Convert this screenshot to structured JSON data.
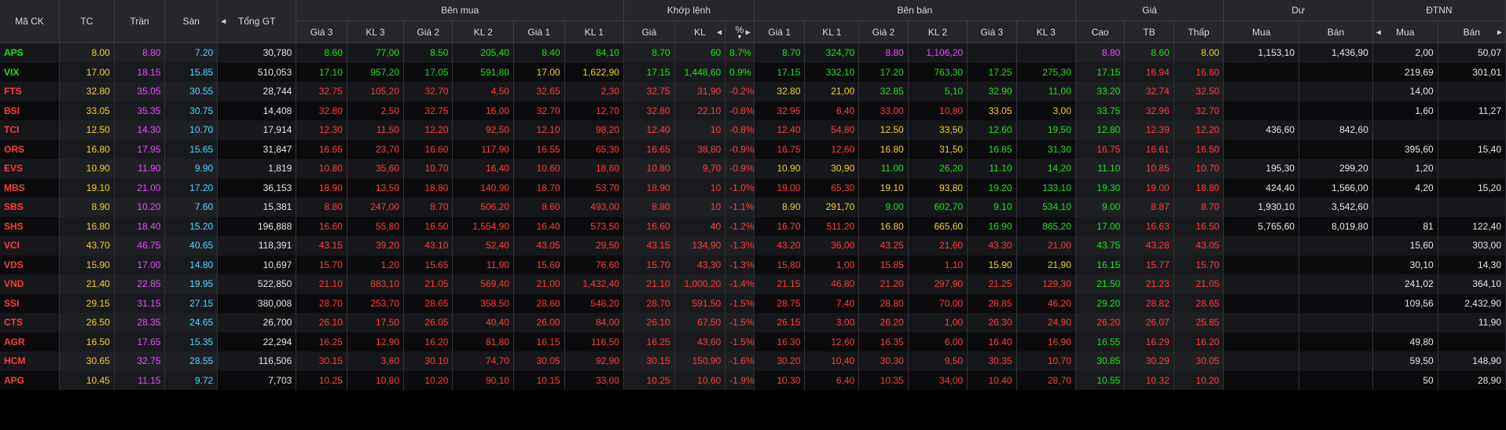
{
  "header": {
    "symbol": "Mã CK",
    "tc": "TC",
    "tran": "Trần",
    "san": "Sàn",
    "total": "Tổng GT",
    "buy_group": "Bên mua",
    "match_group": "Khớp lệnh",
    "sell_group": "Bên bán",
    "price_group": "Giá",
    "du_group": "Dư",
    "dtnn_group": "ĐTNN",
    "gia3": "Giá 3",
    "kl3": "KL 3",
    "gia2": "Giá 2",
    "kl2": "KL 2",
    "gia1": "Giá 1",
    "kl1": "KL 1",
    "m_gia": "Giá",
    "m_kl": "KL",
    "m_pct": "%",
    "s_gia1": "Giá 1",
    "s_kl1": "KL 1",
    "s_gia2": "Giá 2",
    "s_kl2": "KL 2",
    "s_gia3": "Giá 3",
    "s_kl3": "KL 3",
    "cao": "Cao",
    "tb": "TB",
    "thap": "Thấp",
    "du_mua": "Mua",
    "du_ban": "Bán",
    "nn_mua": "Mua",
    "nn_ban": "Bán"
  },
  "colors": {
    "up": "#1ee01e",
    "down": "#ff3b3b",
    "ref": "#f0d21e",
    "ceiling": "#e64bff",
    "floor": "#4dd7ff"
  },
  "rows": [
    {
      "sym": "APS",
      "tc": "8.00",
      "tran": "8.80",
      "san": "7.20",
      "total": "30,780",
      "b": [
        [
          "8.40",
          "84,10",
          "u"
        ],
        [
          "8.50",
          "205,40",
          "u"
        ],
        [
          "8.60",
          "77,00",
          "u"
        ]
      ],
      "m": [
        "8.70",
        "60",
        "8.7%",
        "u"
      ],
      "s": [
        [
          "8.70",
          "324,70",
          "u"
        ],
        [
          "8.80",
          "1,106,20",
          "c"
        ],
        [
          "",
          "",
          " "
        ]
      ],
      "cao": [
        "8.80",
        "c"
      ],
      "tb": [
        "8.60",
        "u"
      ],
      "thap": [
        "8.00",
        "r"
      ],
      "du_mua": "1,153,10",
      "du_ban": "1,436,90",
      "nn_mua": "2,00",
      "nn_ban": "50,07",
      "symc": "u"
    },
    {
      "sym": "VIX",
      "tc": "17.00",
      "tran": "18.15",
      "san": "15.85",
      "total": "510,053",
      "b": [
        [
          "17.00",
          "1,622,90",
          "r"
        ],
        [
          "17.05",
          "591,80",
          "u"
        ],
        [
          "17.10",
          "957,20",
          "u"
        ]
      ],
      "m": [
        "17.15",
        "1,448,60",
        "0.9%",
        "u"
      ],
      "s": [
        [
          "17.15",
          "332,10",
          "u"
        ],
        [
          "17.20",
          "763,30",
          "u"
        ],
        [
          "17.25",
          "275,30",
          "u"
        ]
      ],
      "cao": [
        "17.15",
        "u"
      ],
      "tb": [
        "16.94",
        "d"
      ],
      "thap": [
        "16.60",
        "d"
      ],
      "du_mua": "",
      "du_ban": "",
      "nn_mua": "219,69",
      "nn_ban": "301,01",
      "symc": "u"
    },
    {
      "sym": "FTS",
      "tc": "32.80",
      "tran": "35.05",
      "san": "30.55",
      "total": "28,744",
      "b": [
        [
          "32.65",
          "2,30",
          "d"
        ],
        [
          "32.70",
          "4,50",
          "d"
        ],
        [
          "32.75",
          "105,20",
          "d"
        ]
      ],
      "m": [
        "32.75",
        "31,90",
        "-0.2%",
        "d"
      ],
      "s": [
        [
          "32.80",
          "21,00",
          "r"
        ],
        [
          "32.85",
          "5,10",
          "u"
        ],
        [
          "32.90",
          "11,00",
          "u"
        ]
      ],
      "cao": [
        "33.20",
        "u"
      ],
      "tb": [
        "32.74",
        "d"
      ],
      "thap": [
        "32.50",
        "d"
      ],
      "du_mua": "",
      "du_ban": "",
      "nn_mua": "14,00",
      "nn_ban": "",
      "symc": "d"
    },
    {
      "sym": "BSI",
      "tc": "33.05",
      "tran": "35.35",
      "san": "30.75",
      "total": "14,408",
      "b": [
        [
          "32.70",
          "12,70",
          "d"
        ],
        [
          "32.75",
          "16,00",
          "d"
        ],
        [
          "32.80",
          "2,50",
          "d"
        ]
      ],
      "m": [
        "32.80",
        "22,10",
        "-0.8%",
        "d"
      ],
      "s": [
        [
          "32.95",
          "6,40",
          "d"
        ],
        [
          "33.00",
          "10,80",
          "d"
        ],
        [
          "33.05",
          "3,00",
          "r"
        ]
      ],
      "cao": [
        "33.75",
        "u"
      ],
      "tb": [
        "32.96",
        "d"
      ],
      "thap": [
        "32.70",
        "d"
      ],
      "du_mua": "",
      "du_ban": "",
      "nn_mua": "1,60",
      "nn_ban": "11,27",
      "symc": "d"
    },
    {
      "sym": "TCI",
      "tc": "12.50",
      "tran": "14.30",
      "san": "10.70",
      "total": "17,914",
      "b": [
        [
          "12.10",
          "98,20",
          "d"
        ],
        [
          "12.20",
          "92,50",
          "d"
        ],
        [
          "12.30",
          "11,50",
          "d"
        ]
      ],
      "m": [
        "12.40",
        "10",
        "-0.8%",
        "d"
      ],
      "s": [
        [
          "12.40",
          "54,80",
          "d"
        ],
        [
          "12.50",
          "33,50",
          "r"
        ],
        [
          "12.60",
          "19,50",
          "u"
        ]
      ],
      "cao": [
        "12.80",
        "u"
      ],
      "tb": [
        "12.39",
        "d"
      ],
      "thap": [
        "12.20",
        "d"
      ],
      "du_mua": "436,60",
      "du_ban": "842,60",
      "nn_mua": "",
      "nn_ban": "",
      "symc": "d"
    },
    {
      "sym": "ORS",
      "tc": "16.80",
      "tran": "17.95",
      "san": "15.65",
      "total": "31,847",
      "b": [
        [
          "16.55",
          "65,30",
          "d"
        ],
        [
          "16.60",
          "117,90",
          "d"
        ],
        [
          "16.65",
          "23,70",
          "d"
        ]
      ],
      "m": [
        "16.65",
        "38,80",
        "-0.9%",
        "d"
      ],
      "s": [
        [
          "16.75",
          "12,60",
          "d"
        ],
        [
          "16.80",
          "31,50",
          "r"
        ],
        [
          "16.85",
          "31,30",
          "u"
        ]
      ],
      "cao": [
        "16.75",
        "d"
      ],
      "tb": [
        "16.61",
        "d"
      ],
      "thap": [
        "16.50",
        "d"
      ],
      "du_mua": "",
      "du_ban": "",
      "nn_mua": "395,60",
      "nn_ban": "15,40",
      "symc": "d"
    },
    {
      "sym": "EVS",
      "tc": "10.90",
      "tran": "11.90",
      "san": "9.90",
      "total": "1,819",
      "b": [
        [
          "10.60",
          "18,60",
          "d"
        ],
        [
          "10.70",
          "16,40",
          "d"
        ],
        [
          "10.80",
          "35,60",
          "d"
        ]
      ],
      "m": [
        "10.80",
        "9,70",
        "-0.9%",
        "d"
      ],
      "s": [
        [
          "10.90",
          "30,90",
          "r"
        ],
        [
          "11.00",
          "26,20",
          "u"
        ],
        [
          "11.10",
          "14,20",
          "u"
        ]
      ],
      "cao": [
        "11.10",
        "u"
      ],
      "tb": [
        "10.85",
        "d"
      ],
      "thap": [
        "10.70",
        "d"
      ],
      "du_mua": "195,30",
      "du_ban": "299,20",
      "nn_mua": "1,20",
      "nn_ban": "",
      "symc": "d"
    },
    {
      "sym": "MBS",
      "tc": "19.10",
      "tran": "21.00",
      "san": "17.20",
      "total": "36,153",
      "b": [
        [
          "18.70",
          "53,70",
          "d"
        ],
        [
          "18.80",
          "140,90",
          "d"
        ],
        [
          "18.90",
          "13,50",
          "d"
        ]
      ],
      "m": [
        "18.90",
        "10",
        "-1.0%",
        "d"
      ],
      "s": [
        [
          "19.00",
          "65,30",
          "d"
        ],
        [
          "19.10",
          "93,80",
          "r"
        ],
        [
          "19.20",
          "133,10",
          "u"
        ]
      ],
      "cao": [
        "19.30",
        "u"
      ],
      "tb": [
        "19.00",
        "d"
      ],
      "thap": [
        "18.80",
        "d"
      ],
      "du_mua": "424,40",
      "du_ban": "1,566,00",
      "nn_mua": "4,20",
      "nn_ban": "15,20",
      "symc": "d"
    },
    {
      "sym": "SBS",
      "tc": "8.90",
      "tran": "10.20",
      "san": "7.60",
      "total": "15,381",
      "b": [
        [
          "8.60",
          "493,00",
          "d"
        ],
        [
          "8.70",
          "506,20",
          "d"
        ],
        [
          "8.80",
          "247,00",
          "d"
        ]
      ],
      "m": [
        "8.80",
        "10",
        "-1.1%",
        "d"
      ],
      "s": [
        [
          "8.90",
          "291,70",
          "r"
        ],
        [
          "9.00",
          "602,70",
          "u"
        ],
        [
          "9.10",
          "534,10",
          "u"
        ]
      ],
      "cao": [
        "9.00",
        "u"
      ],
      "tb": [
        "8.87",
        "d"
      ],
      "thap": [
        "8.70",
        "d"
      ],
      "du_mua": "1,930,10",
      "du_ban": "3,542,60",
      "nn_mua": "",
      "nn_ban": "",
      "symc": "d"
    },
    {
      "sym": "SHS",
      "tc": "16.80",
      "tran": "18.40",
      "san": "15.20",
      "total": "196,888",
      "b": [
        [
          "16.40",
          "573,50",
          "d"
        ],
        [
          "16.50",
          "1,554,90",
          "d"
        ],
        [
          "16.60",
          "55,80",
          "d"
        ]
      ],
      "m": [
        "16.60",
        "40",
        "-1.2%",
        "d"
      ],
      "s": [
        [
          "16.70",
          "511,20",
          "d"
        ],
        [
          "16.80",
          "665,60",
          "r"
        ],
        [
          "16.90",
          "865,20",
          "u"
        ]
      ],
      "cao": [
        "17.00",
        "u"
      ],
      "tb": [
        "16.63",
        "d"
      ],
      "thap": [
        "16.50",
        "d"
      ],
      "du_mua": "5,765,60",
      "du_ban": "8,019,80",
      "nn_mua": "81",
      "nn_ban": "122,40",
      "symc": "d"
    },
    {
      "sym": "VCI",
      "tc": "43.70",
      "tran": "46.75",
      "san": "40.65",
      "total": "118,391",
      "b": [
        [
          "43.05",
          "29,50",
          "d"
        ],
        [
          "43.10",
          "52,40",
          "d"
        ],
        [
          "43.15",
          "39,20",
          "d"
        ]
      ],
      "m": [
        "43.15",
        "134,90",
        "-1.3%",
        "d"
      ],
      "s": [
        [
          "43.20",
          "36,00",
          "d"
        ],
        [
          "43.25",
          "21,60",
          "d"
        ],
        [
          "43.30",
          "21,00",
          "d"
        ]
      ],
      "cao": [
        "43.75",
        "u"
      ],
      "tb": [
        "43.28",
        "d"
      ],
      "thap": [
        "43.05",
        "d"
      ],
      "du_mua": "",
      "du_ban": "",
      "nn_mua": "15,60",
      "nn_ban": "303,00",
      "symc": "d"
    },
    {
      "sym": "VDS",
      "tc": "15.90",
      "tran": "17.00",
      "san": "14.80",
      "total": "10,697",
      "b": [
        [
          "15.60",
          "76,60",
          "d"
        ],
        [
          "15.65",
          "11,90",
          "d"
        ],
        [
          "15.70",
          "1,20",
          "d"
        ]
      ],
      "m": [
        "15.70",
        "43,30",
        "-1.3%",
        "d"
      ],
      "s": [
        [
          "15.80",
          "1,00",
          "d"
        ],
        [
          "15.85",
          "1,10",
          "d"
        ],
        [
          "15.90",
          "21,90",
          "r"
        ]
      ],
      "cao": [
        "16.15",
        "u"
      ],
      "tb": [
        "15.77",
        "d"
      ],
      "thap": [
        "15.70",
        "d"
      ],
      "du_mua": "",
      "du_ban": "",
      "nn_mua": "30,10",
      "nn_ban": "14,30",
      "symc": "d"
    },
    {
      "sym": "VND",
      "tc": "21.40",
      "tran": "22.85",
      "san": "19.95",
      "total": "522,850",
      "b": [
        [
          "21.00",
          "1,432,40",
          "d"
        ],
        [
          "21.05",
          "569,40",
          "d"
        ],
        [
          "21.10",
          "883,10",
          "d"
        ]
      ],
      "m": [
        "21.10",
        "1,000,20",
        "-1.4%",
        "d"
      ],
      "s": [
        [
          "21.15",
          "46,80",
          "d"
        ],
        [
          "21.20",
          "297,90",
          "d"
        ],
        [
          "21.25",
          "129,30",
          "d"
        ]
      ],
      "cao": [
        "21.50",
        "u"
      ],
      "tb": [
        "21.23",
        "d"
      ],
      "thap": [
        "21.05",
        "d"
      ],
      "du_mua": "",
      "du_ban": "",
      "nn_mua": "241,02",
      "nn_ban": "364,10",
      "symc": "d"
    },
    {
      "sym": "SSI",
      "tc": "29.15",
      "tran": "31.15",
      "san": "27.15",
      "total": "380,008",
      "b": [
        [
          "28.60",
          "548,20",
          "d"
        ],
        [
          "28.65",
          "358,50",
          "d"
        ],
        [
          "28.70",
          "253,70",
          "d"
        ]
      ],
      "m": [
        "28.70",
        "591,50",
        "-1.5%",
        "d"
      ],
      "s": [
        [
          "28.75",
          "7,40",
          "d"
        ],
        [
          "28.80",
          "70,00",
          "d"
        ],
        [
          "28.85",
          "46,20",
          "d"
        ]
      ],
      "cao": [
        "29.20",
        "u"
      ],
      "tb": [
        "28.82",
        "d"
      ],
      "thap": [
        "28.65",
        "d"
      ],
      "du_mua": "",
      "du_ban": "",
      "nn_mua": "109,56",
      "nn_ban": "2,432,90",
      "symc": "d"
    },
    {
      "sym": "CTS",
      "tc": "26.50",
      "tran": "28.35",
      "san": "24.65",
      "total": "26,700",
      "b": [
        [
          "26.00",
          "84,00",
          "d"
        ],
        [
          "26.05",
          "40,40",
          "d"
        ],
        [
          "26.10",
          "17,50",
          "d"
        ]
      ],
      "m": [
        "26.10",
        "67,50",
        "-1.5%",
        "d"
      ],
      "s": [
        [
          "26.15",
          "3,00",
          "d"
        ],
        [
          "26.20",
          "1,00",
          "d"
        ],
        [
          "26.30",
          "24,90",
          "d"
        ]
      ],
      "cao": [
        "26.20",
        "d"
      ],
      "tb": [
        "26.07",
        "d"
      ],
      "thap": [
        "25.85",
        "d"
      ],
      "du_mua": "",
      "du_ban": "",
      "nn_mua": "",
      "nn_ban": "11,90",
      "symc": "d"
    },
    {
      "sym": "AGR",
      "tc": "16.50",
      "tran": "17.65",
      "san": "15.35",
      "total": "22,294",
      "b": [
        [
          "16.15",
          "116,50",
          "d"
        ],
        [
          "16.20",
          "81,80",
          "d"
        ],
        [
          "16.25",
          "12,90",
          "d"
        ]
      ],
      "m": [
        "16.25",
        "43,60",
        "-1.5%",
        "d"
      ],
      "s": [
        [
          "16.30",
          "12,60",
          "d"
        ],
        [
          "16.35",
          "6,00",
          "d"
        ],
        [
          "16.40",
          "16,90",
          "d"
        ]
      ],
      "cao": [
        "16.55",
        "u"
      ],
      "tb": [
        "16.29",
        "d"
      ],
      "thap": [
        "16.20",
        "d"
      ],
      "du_mua": "",
      "du_ban": "",
      "nn_mua": "49,80",
      "nn_ban": "",
      "symc": "d"
    },
    {
      "sym": "HCM",
      "tc": "30.65",
      "tran": "32.75",
      "san": "28.55",
      "total": "116,506",
      "b": [
        [
          "30.05",
          "92,90",
          "d"
        ],
        [
          "30.10",
          "74,70",
          "d"
        ],
        [
          "30.15",
          "3,60",
          "d"
        ]
      ],
      "m": [
        "30.15",
        "150,90",
        "-1.6%",
        "d"
      ],
      "s": [
        [
          "30.20",
          "10,40",
          "d"
        ],
        [
          "30.30",
          "9,50",
          "d"
        ],
        [
          "30.35",
          "10,70",
          "d"
        ]
      ],
      "cao": [
        "30.85",
        "u"
      ],
      "tb": [
        "30.29",
        "d"
      ],
      "thap": [
        "30.05",
        "d"
      ],
      "du_mua": "",
      "du_ban": "",
      "nn_mua": "59,50",
      "nn_ban": "148,90",
      "symc": "d"
    },
    {
      "sym": "APG",
      "tc": "10.45",
      "tran": "11.15",
      "san": "9.72",
      "total": "7,703",
      "b": [
        [
          "10.15",
          "33,00",
          "d"
        ],
        [
          "10.20",
          "90,10",
          "d"
        ],
        [
          "10.25",
          "10,80",
          "d"
        ]
      ],
      "m": [
        "10.25",
        "10,60",
        "-1.9%",
        "d"
      ],
      "s": [
        [
          "10.30",
          "6,40",
          "d"
        ],
        [
          "10.35",
          "34,00",
          "d"
        ],
        [
          "10.40",
          "28,70",
          "d"
        ]
      ],
      "cao": [
        "10.55",
        "u"
      ],
      "tb": [
        "10.32",
        "d"
      ],
      "thap": [
        "10.20",
        "d"
      ],
      "du_mua": "",
      "du_ban": "",
      "nn_mua": "50",
      "nn_ban": "28,90",
      "symc": "d"
    }
  ]
}
